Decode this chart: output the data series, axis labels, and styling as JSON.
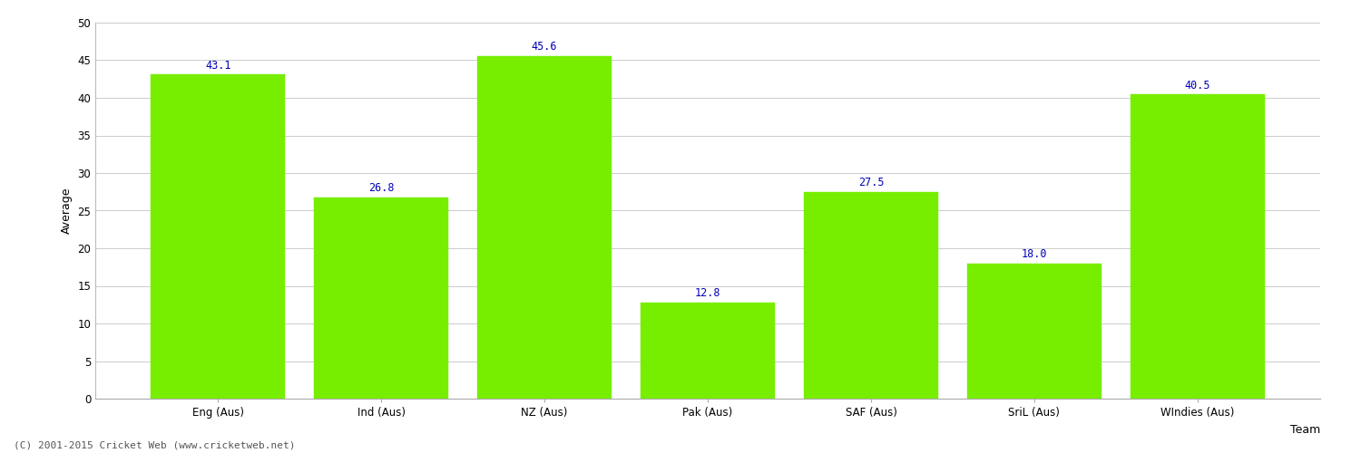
{
  "categories": [
    "Eng (Aus)",
    "Ind (Aus)",
    "NZ (Aus)",
    "Pak (Aus)",
    "SAF (Aus)",
    "SriL (Aus)",
    "WIndies (Aus)"
  ],
  "values": [
    43.1,
    26.8,
    45.6,
    12.8,
    27.5,
    18.0,
    40.5
  ],
  "bar_color": "#77ee00",
  "bar_edge_color": "#77ee00",
  "label_color": "#0000bb",
  "xlabel": "Team",
  "ylabel": "Average",
  "ylim": [
    0,
    50
  ],
  "yticks": [
    0,
    5,
    10,
    15,
    20,
    25,
    30,
    35,
    40,
    45,
    50
  ],
  "label_fontsize": 8.5,
  "axis_fontsize": 9,
  "tick_fontsize": 8.5,
  "bg_color": "#ffffff",
  "grid_color": "#cccccc",
  "footer": "(C) 2001-2015 Cricket Web (www.cricketweb.net)",
  "bar_width": 0.82
}
